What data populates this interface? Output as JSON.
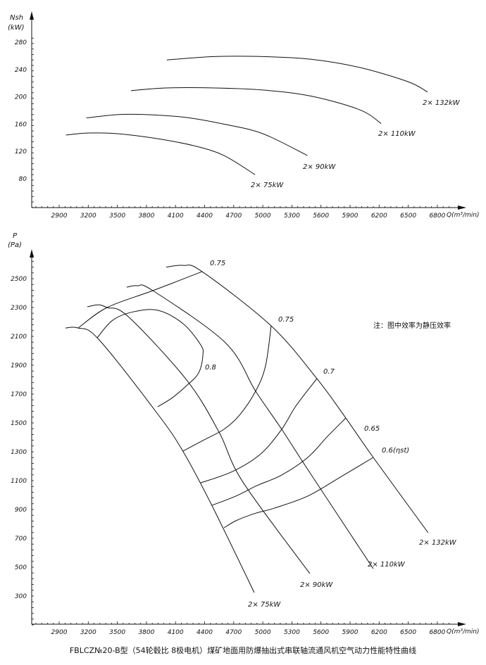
{
  "title": "FBLCZ№20-B型（54轮毂比 8极电机）煤矿地面用防爆抽出式串联轴流通风机空气动力性能特性曲线",
  "note": "注：图中效率为静压效率",
  "colors": {
    "line": "#111111",
    "background": "#ffffff"
  },
  "chart_data": [
    {
      "type": "line",
      "ylabel_line1": "Nsh",
      "ylabel_line2": "(kW)",
      "xlabel": "Q(m³/min)",
      "xlim": [
        2617,
        7080
      ],
      "ylim": [
        38,
        290
      ],
      "x_ticks": [
        "2900",
        "3200",
        "3500",
        "3800",
        "4100",
        "4400",
        "4700",
        "5000",
        "5300",
        "5600",
        "5900",
        "6200",
        "6500",
        "6800"
      ],
      "y_ticks": [
        "280",
        "240",
        "200",
        "160",
        "120",
        "80"
      ],
      "grid": false,
      "series": [
        {
          "name": "2× 132kW",
          "points": [
            [
              4010,
              254
            ],
            [
              4500,
              259
            ],
            [
              5000,
              259
            ],
            [
              5500,
              255
            ],
            [
              6000,
              243
            ],
            [
              6500,
              222
            ],
            [
              6700,
              207
            ]
          ]
        },
        {
          "name": "2× 110kW",
          "points": [
            [
              3640,
              209
            ],
            [
              4000,
              213
            ],
            [
              4500,
              213
            ],
            [
              5000,
              210
            ],
            [
              5500,
              201
            ],
            [
              6000,
              181
            ],
            [
              6220,
              161
            ]
          ]
        },
        {
          "name": "2× 90kW",
          "points": [
            [
              3180,
              169
            ],
            [
              3500,
              174
            ],
            [
              3800,
              174
            ],
            [
              4200,
              170
            ],
            [
              4600,
              160
            ],
            [
              5000,
              146
            ],
            [
              5460,
              114
            ]
          ]
        },
        {
          "name": "2× 75kW",
          "points": [
            [
              2970,
              144
            ],
            [
              3200,
              147
            ],
            [
              3500,
              146
            ],
            [
              3900,
              139
            ],
            [
              4300,
              128
            ],
            [
              4600,
              114
            ],
            [
              4920,
              86
            ]
          ]
        }
      ]
    },
    {
      "type": "line",
      "ylabel_line1": "P",
      "ylabel_line2": "(Pa)",
      "xlabel": "Q(m³/min)",
      "xlim": [
        2617,
        7080
      ],
      "ylim": [
        100,
        2680
      ],
      "x_ticks": [
        "2900",
        "3200",
        "3500",
        "3800",
        "4100",
        "4400",
        "4700",
        "5000",
        "5300",
        "5600",
        "5900",
        "6200",
        "6500",
        "6800"
      ],
      "y_ticks": [
        "2500",
        "2300",
        "2100",
        "1900",
        "1700",
        "1500",
        "1300",
        "1100",
        "900",
        "700",
        "500",
        "300"
      ],
      "grid": false,
      "series": [
        {
          "name": "2× 132kW",
          "points": [
            [
              4004,
              2580
            ],
            [
              4180,
              2592
            ],
            [
              4374,
              2549
            ],
            [
              5086,
              2173
            ],
            [
              5558,
              1807
            ],
            [
              5856,
              1534
            ],
            [
              6139,
              1261
            ],
            [
              6705,
              739
            ]
          ]
        },
        {
          "name": "2× 110kW",
          "points": [
            [
              3597,
              2441
            ],
            [
              3706,
              2451
            ],
            [
              3866,
              2417
            ],
            [
              4614,
              2056
            ],
            [
              4926,
              1720
            ],
            [
              5195,
              1456
            ],
            [
              5463,
              1178
            ],
            [
              6139,
              490
            ]
          ]
        },
        {
          "name": "2× 90kW",
          "points": [
            [
              3190,
              2305
            ],
            [
              3307,
              2319
            ],
            [
              3394,
              2300
            ],
            [
              3612,
              2237
            ],
            [
              4214,
              1798
            ],
            [
              4548,
              1437
            ],
            [
              4795,
              1090
            ],
            [
              5485,
              456
            ]
          ]
        },
        {
          "name": "2× 75kW",
          "points": [
            [
              2965,
              2158
            ],
            [
              3096,
              2158
            ],
            [
              3307,
              2080
            ],
            [
              3917,
              1561
            ],
            [
              4178,
              1302
            ],
            [
              4476,
              927
            ],
            [
              4912,
              324
            ]
          ]
        }
      ],
      "efficiency_contours": [
        {
          "label": "0.75",
          "points": [
            [
              3096,
              2158
            ],
            [
              3394,
              2300
            ],
            [
              3866,
              2417
            ],
            [
              4374,
              2549
            ]
          ]
        },
        {
          "label": "0.8",
          "points": [
            [
              3292,
              2090
            ],
            [
              3452,
              2212
            ],
            [
              3670,
              2271
            ],
            [
              3924,
              2280
            ],
            [
              4178,
              2188
            ],
            [
              4360,
              2041
            ],
            [
              4382,
              1968
            ],
            [
              4338,
              1846
            ],
            [
              4215,
              1759
            ],
            [
              4070,
              1676
            ],
            [
              3917,
              1612
            ]
          ]
        },
        {
          "label": "0.75",
          "points": [
            [
              5086,
              2173
            ],
            [
              5028,
              1895
            ],
            [
              4926,
              1720
            ],
            [
              4760,
              1554
            ],
            [
              4600,
              1456
            ],
            [
              4396,
              1383
            ],
            [
              4178,
              1305
            ]
          ]
        },
        {
          "label": "0.7",
          "points": [
            [
              5558,
              1807
            ],
            [
              5341,
              1617
            ],
            [
              5195,
              1456
            ],
            [
              4978,
              1285
            ],
            [
              4687,
              1163
            ],
            [
              4360,
              1085
            ]
          ]
        },
        {
          "label": "0.65",
          "points": [
            [
              5856,
              1534
            ],
            [
              5668,
              1407
            ],
            [
              5464,
              1261
            ],
            [
              5195,
              1139
            ],
            [
              4941,
              1066
            ],
            [
              4723,
              993
            ],
            [
              4476,
              929
            ]
          ]
        },
        {
          "label": "0.6(ηst)",
          "points": [
            [
              6140,
              1261
            ],
            [
              5777,
              1115
            ],
            [
              5464,
              993
            ],
            [
              5123,
              910
            ],
            [
              4912,
              871
            ],
            [
              4723,
              822
            ],
            [
              4600,
              773
            ]
          ]
        }
      ]
    }
  ]
}
